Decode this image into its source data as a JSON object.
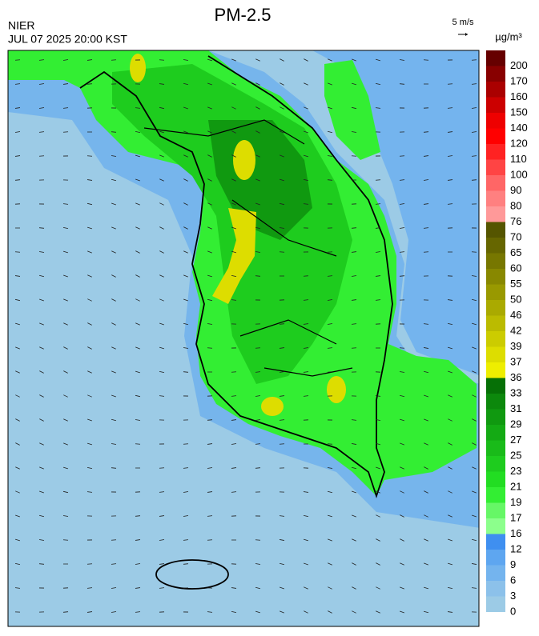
{
  "title": "PM-2.5",
  "source": "NIER",
  "datetime": "JUL 07 2025 20:00 KST",
  "wind_reference": "5 m/s",
  "unit": "µg/m³",
  "colorbar": {
    "levels": [
      0,
      3,
      6,
      9,
      12,
      16,
      17,
      19,
      21,
      23,
      25,
      27,
      29,
      31,
      33,
      36,
      37,
      39,
      42,
      46,
      50,
      55,
      60,
      65,
      70,
      76,
      80,
      90,
      100,
      110,
      120,
      140,
      150,
      160,
      170,
      200
    ],
    "colors": [
      "#9ccbe6",
      "#8cc1ea",
      "#74b4ee",
      "#5ea6f0",
      "#3f8ff0",
      "#8cff8c",
      "#66f766",
      "#33ee33",
      "#22dd22",
      "#1ecc1e",
      "#19bb19",
      "#14aa14",
      "#109910",
      "#0c880c",
      "#067006",
      "#eeee00",
      "#dddd00",
      "#cccc00",
      "#bbbb00",
      "#aaaa00",
      "#999900",
      "#888800",
      "#777700",
      "#666600",
      "#555500",
      "#ff9999",
      "#ff8080",
      "#ff6666",
      "#ff4444",
      "#ff2222",
      "#ff0000",
      "#ee0000",
      "#cc0000",
      "#aa0000",
      "#880000",
      "#660000"
    ]
  }
}
